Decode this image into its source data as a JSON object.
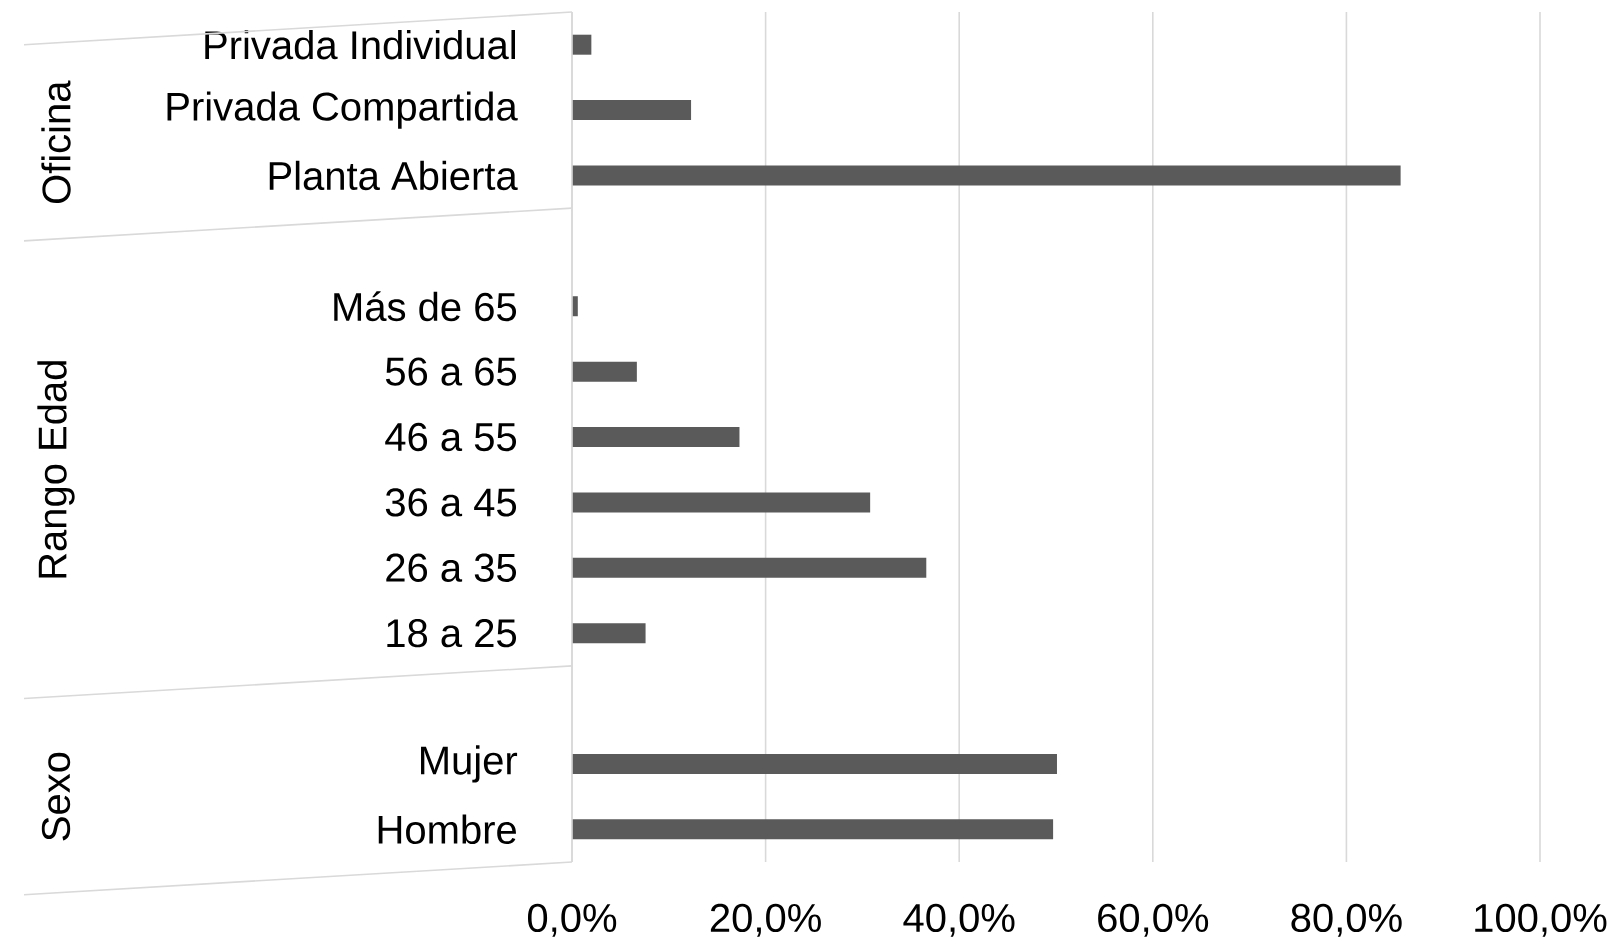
{
  "chart_data": {
    "type": "bar",
    "orientation": "horizontal",
    "categories": [
      "Privada Individual",
      "Privada Compartida",
      "Planta Abierta",
      null,
      "Más de 65",
      "56 a 65",
      "46 a 55",
      "36 a 45",
      "26 a 35",
      "18 a 25",
      null,
      "Mujer",
      "Hombre"
    ],
    "values": [
      2.0,
      12.3,
      85.6,
      null,
      0.6,
      6.7,
      17.3,
      30.8,
      36.6,
      7.6,
      null,
      50.1,
      49.7
    ],
    "color": "#5a5a5a",
    "annotations": [
      "Oficina",
      "Rango Edad",
      "Sexo"
    ],
    "xlim": [
      0,
      100
    ],
    "xticks": [
      {
        "value": 0,
        "label": "0,0%"
      },
      {
        "value": 20,
        "label": "20,0%"
      },
      {
        "value": 40,
        "label": "40,0%"
      },
      {
        "value": 60,
        "label": "60,0%"
      },
      {
        "value": 80,
        "label": "80,0%"
      },
      {
        "value": 100,
        "label": "100,0%"
      }
    ],
    "grid": "x"
  }
}
